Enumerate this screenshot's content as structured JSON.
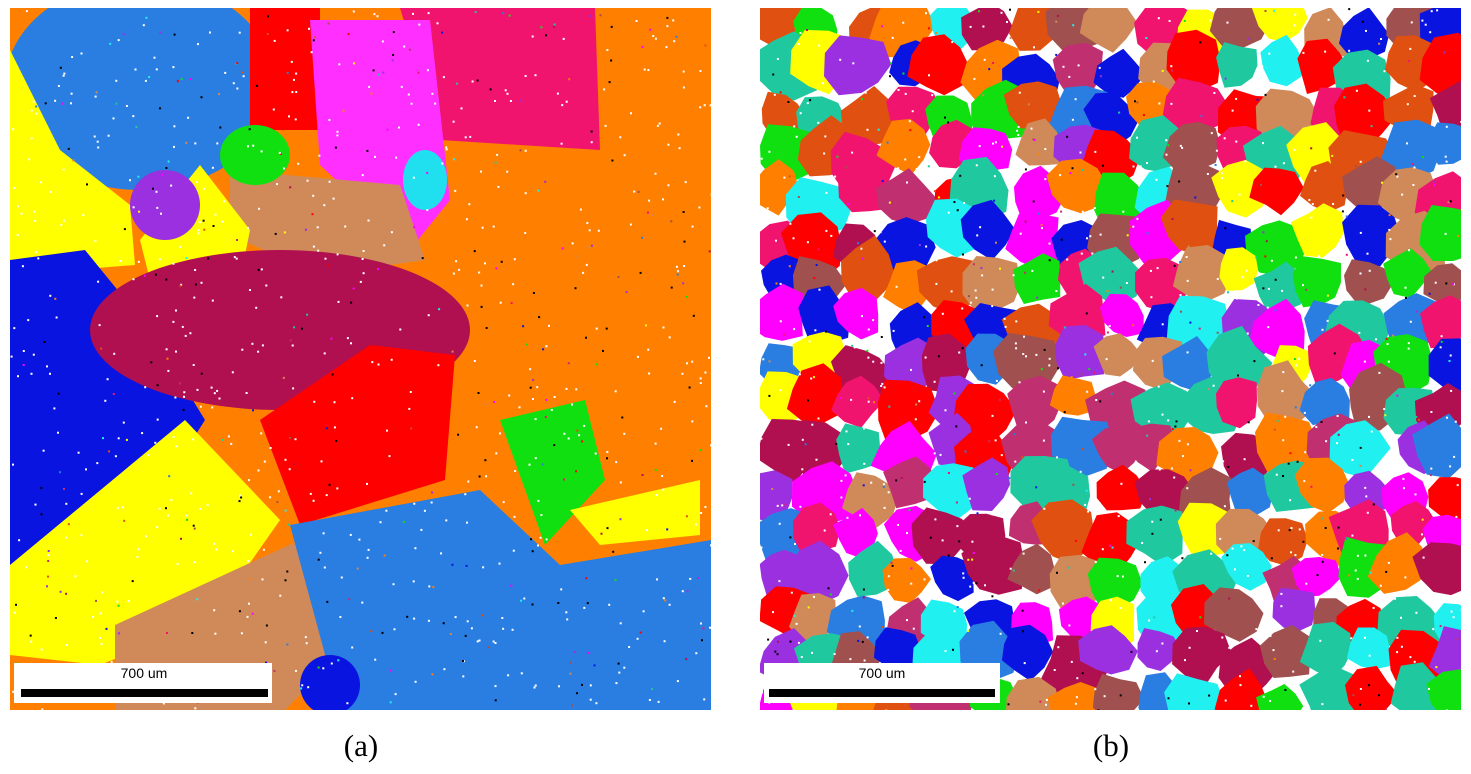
{
  "panels": [
    {
      "scale_bar": "700 um",
      "label": "(a)"
    },
    {
      "scale_bar": "700 um",
      "label": "(b)"
    }
  ]
}
